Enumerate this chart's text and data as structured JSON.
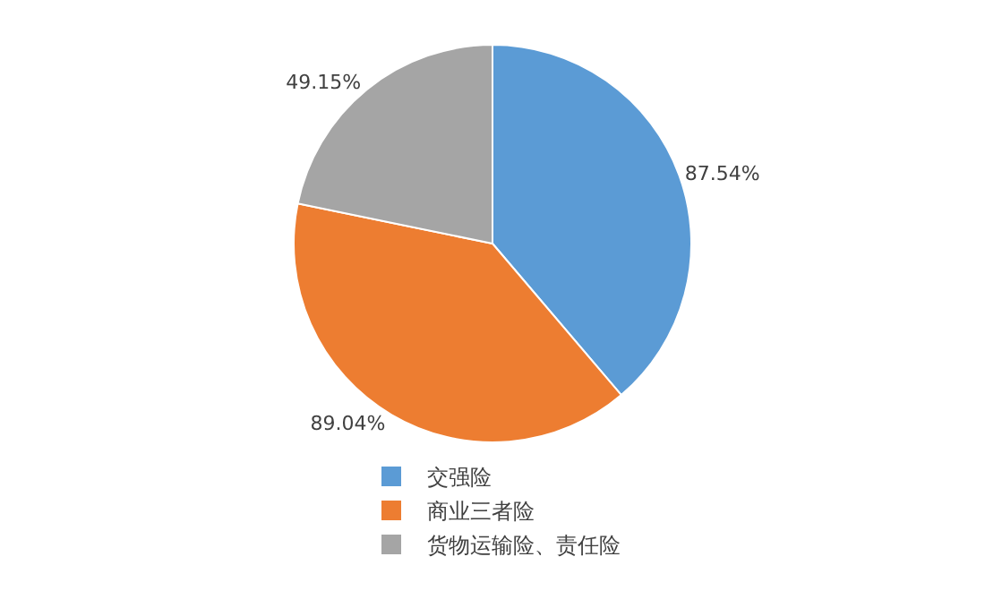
{
  "chart_data": {
    "type": "pie",
    "categories": [
      "交强险",
      "商业三者险",
      "货物运输险、责任险"
    ],
    "values": [
      87.54,
      89.04,
      49.15
    ],
    "colors": [
      "#5b9bd5",
      "#ed7d31",
      "#a5a5a5"
    ],
    "value_labels": [
      "87.54%",
      "89.04%",
      "49.15%"
    ],
    "legend": "bottom"
  }
}
